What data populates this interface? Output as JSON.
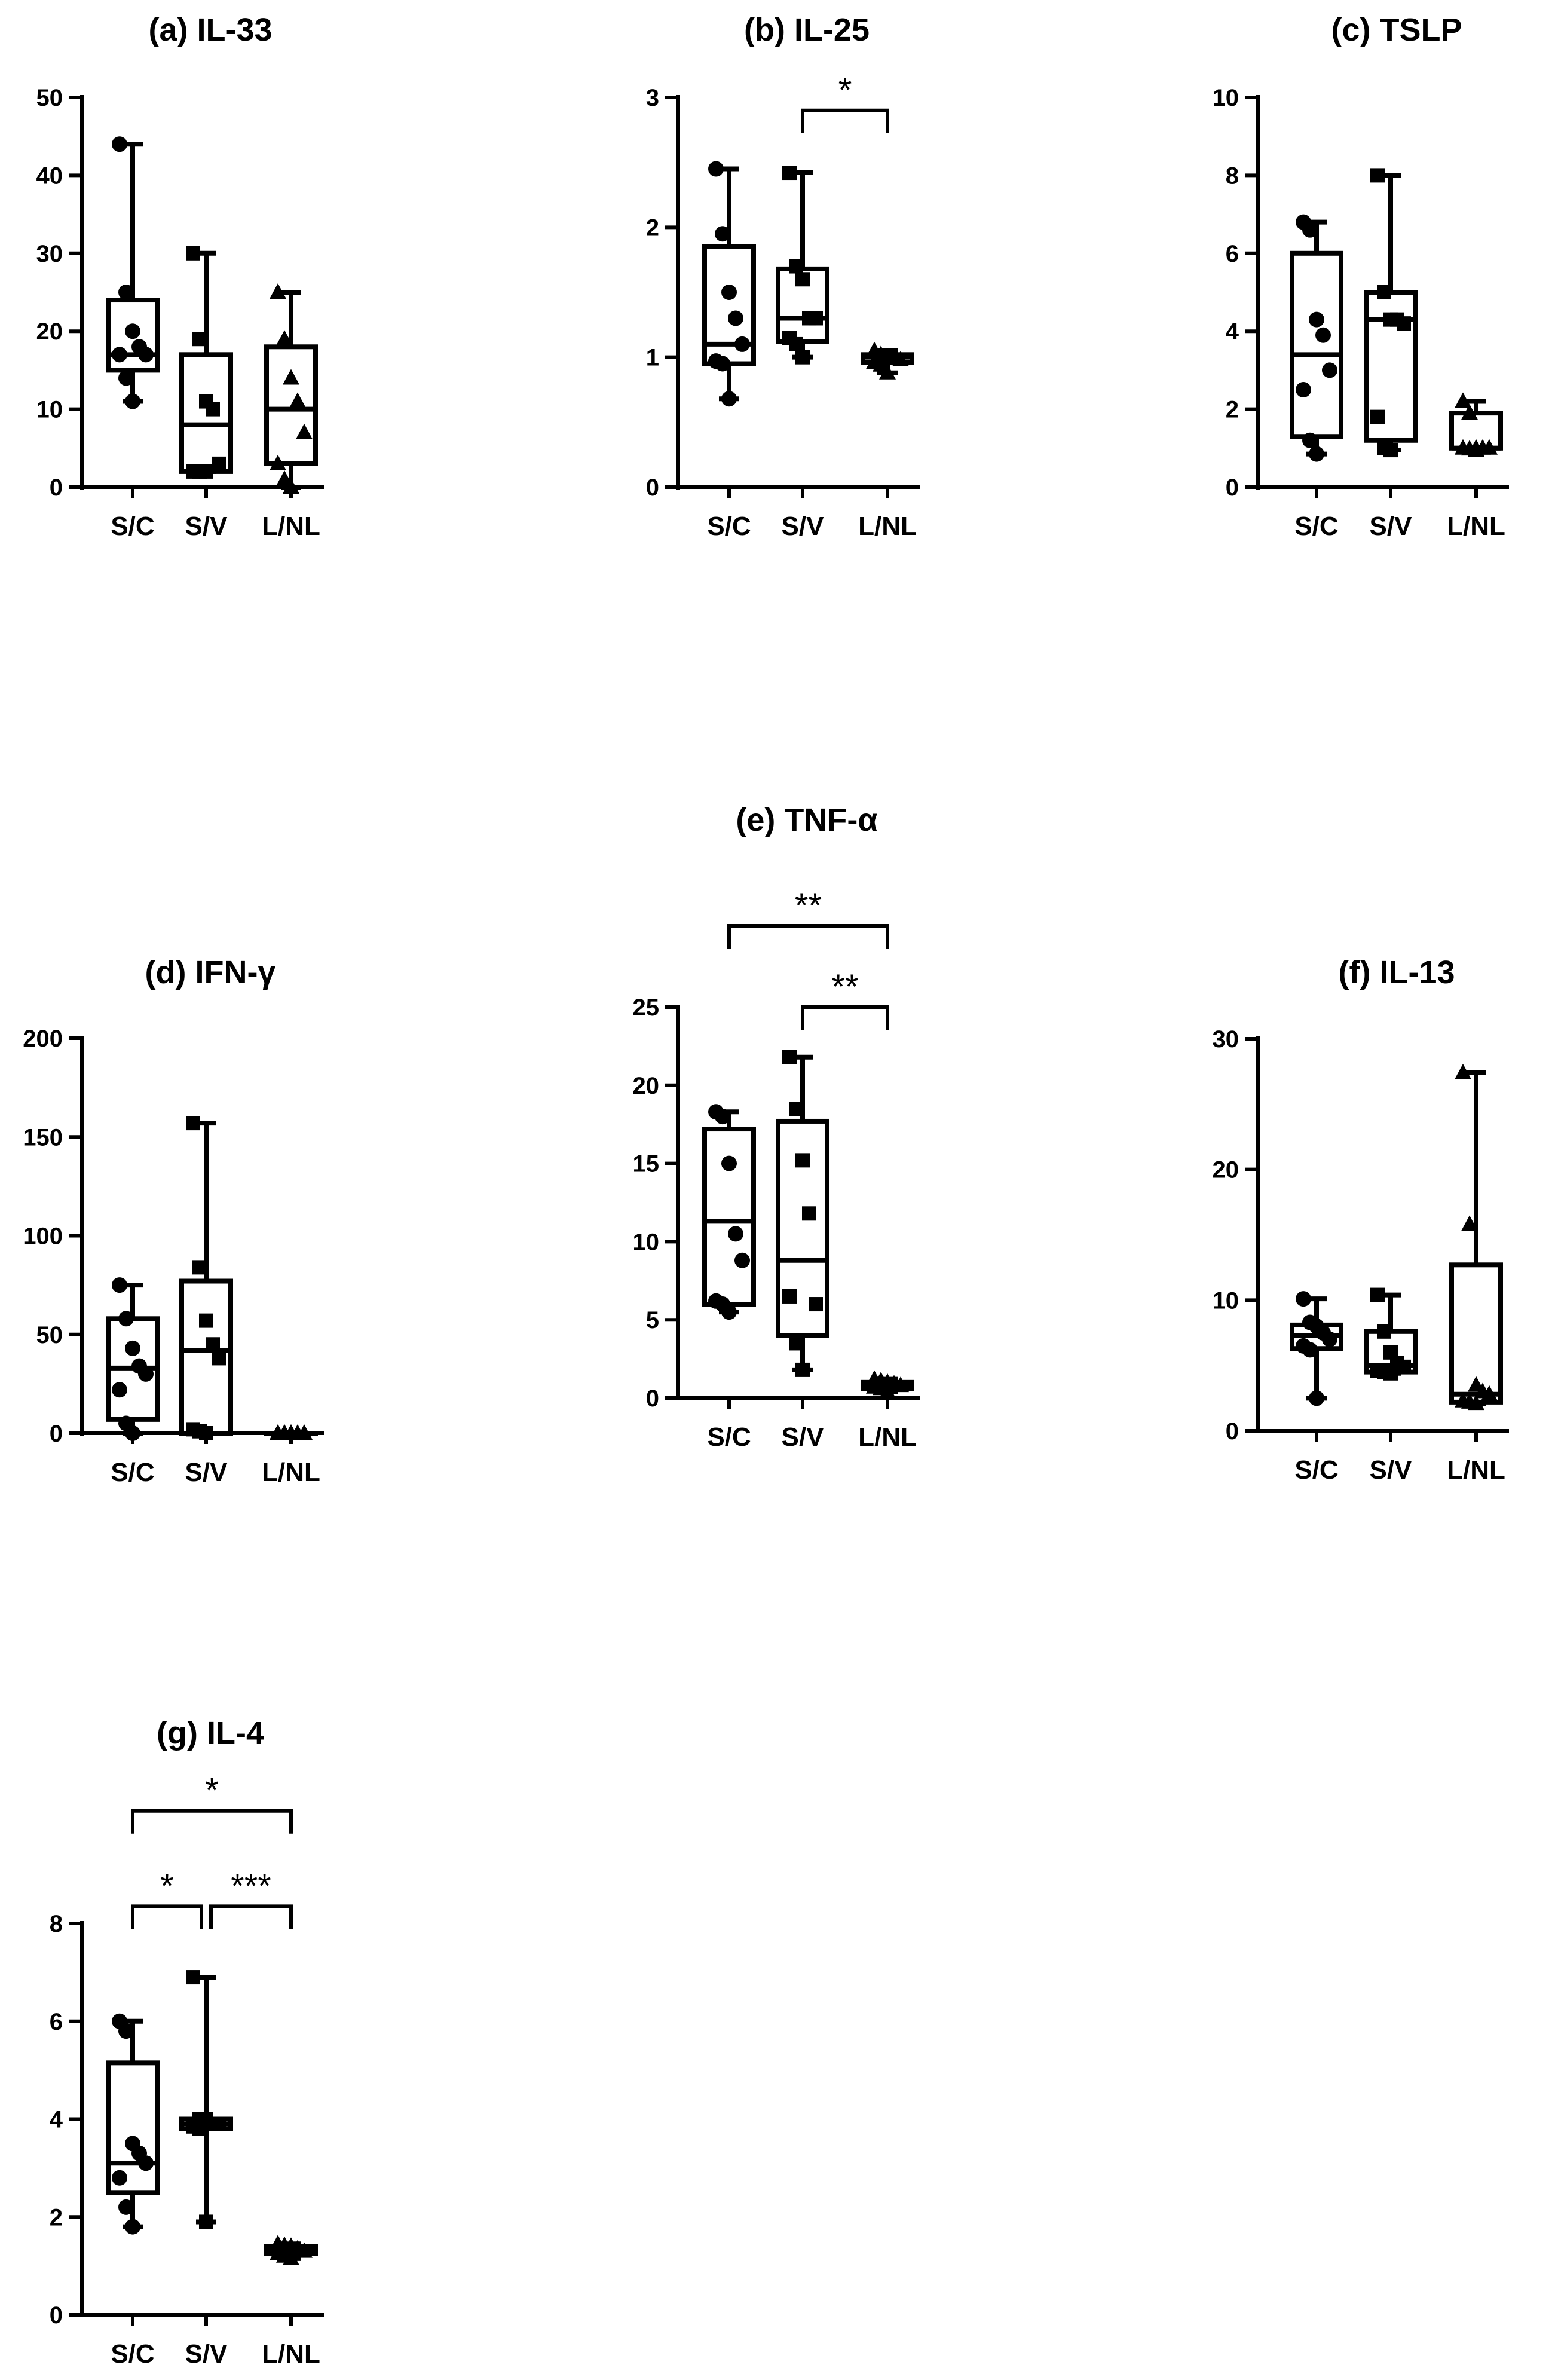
{
  "chart_data": [
    {
      "id": "a",
      "type": "box",
      "title": "(a)   IL-33",
      "categories": [
        "S/C",
        "S/V",
        "L/NL"
      ],
      "ylim": [
        0,
        50
      ],
      "yticks": [
        0,
        10,
        20,
        30,
        40,
        50
      ],
      "grid": false,
      "series": [
        {
          "marker": "circle",
          "box": {
            "min": 11,
            "q1": 15,
            "median": 17,
            "q3": 24,
            "max": 44
          },
          "points": [
            44,
            25,
            20,
            18,
            17,
            17,
            14,
            11
          ]
        },
        {
          "marker": "square",
          "box": {
            "min": 2,
            "q1": 2,
            "median": 8,
            "q3": 17,
            "max": 30
          },
          "points": [
            30,
            19,
            11,
            10,
            3,
            2,
            2,
            2
          ]
        },
        {
          "marker": "triangle",
          "box": {
            "min": 0,
            "q1": 3,
            "median": 10,
            "q3": 18,
            "max": 25
          },
          "points": [
            25,
            19,
            14,
            11,
            7,
            3,
            1,
            0
          ]
        }
      ],
      "significance": []
    },
    {
      "id": "b",
      "type": "box",
      "title": "(b)   IL-25",
      "categories": [
        "S/C",
        "S/V",
        "L/NL"
      ],
      "ylim": [
        0,
        3
      ],
      "yticks": [
        0,
        1,
        2,
        3
      ],
      "grid": false,
      "series": [
        {
          "marker": "circle",
          "box": {
            "min": 0.68,
            "q1": 0.95,
            "median": 1.1,
            "q3": 1.85,
            "max": 2.45
          },
          "points": [
            2.45,
            1.95,
            1.5,
            1.3,
            1.1,
            0.97,
            0.95,
            0.68
          ]
        },
        {
          "marker": "square",
          "box": {
            "min": 1.0,
            "q1": 1.12,
            "median": 1.3,
            "q3": 1.68,
            "max": 2.42
          },
          "points": [
            2.42,
            1.7,
            1.6,
            1.3,
            1.3,
            1.15,
            1.1,
            1.0
          ]
        },
        {
          "marker": "triangle",
          "box": {
            "min": 0.88,
            "q1": 0.96,
            "median": 1.0,
            "q3": 1.02,
            "max": 1.05
          },
          "points": [
            1.05,
            1.02,
            1.0,
            1.0,
            0.98,
            0.96,
            0.94,
            0.88
          ]
        }
      ],
      "significance": [
        {
          "from": 1,
          "to": 2,
          "label": "*",
          "y": 2.9
        }
      ]
    },
    {
      "id": "c",
      "type": "box",
      "title": "(c)   TSLP",
      "categories": [
        "S/C",
        "S/V",
        "L/NL"
      ],
      "ylim": [
        0,
        10
      ],
      "yticks": [
        0,
        2,
        4,
        6,
        8,
        10
      ],
      "grid": false,
      "series": [
        {
          "marker": "circle",
          "box": {
            "min": 0.85,
            "q1": 1.3,
            "median": 3.4,
            "q3": 6.0,
            "max": 6.8
          },
          "points": [
            6.8,
            6.6,
            4.3,
            3.9,
            3.0,
            2.5,
            1.2,
            0.85
          ]
        },
        {
          "marker": "square",
          "box": {
            "min": 0.95,
            "q1": 1.2,
            "median": 4.3,
            "q3": 5.0,
            "max": 8.0
          },
          "points": [
            8.0,
            5.0,
            4.3,
            4.3,
            4.2,
            1.8,
            1.0,
            0.95
          ]
        },
        {
          "marker": "triangle",
          "box": {
            "min": 0.95,
            "q1": 1.0,
            "median": 1.0,
            "q3": 1.9,
            "max": 2.2
          },
          "points": [
            2.2,
            1.9,
            1.0,
            1.0,
            1.0,
            1.0,
            0.98,
            0.95
          ]
        }
      ],
      "significance": []
    },
    {
      "id": "d",
      "type": "box",
      "title": "(d)   IFN-γ",
      "categories": [
        "S/C",
        "S/V",
        "L/NL"
      ],
      "ylim": [
        0,
        200
      ],
      "yticks": [
        0,
        50,
        100,
        150,
        200
      ],
      "grid": false,
      "series": [
        {
          "marker": "circle",
          "box": {
            "min": 0,
            "q1": 7,
            "median": 33,
            "q3": 58,
            "max": 75
          },
          "points": [
            75,
            58,
            43,
            34,
            30,
            22,
            5,
            0
          ]
        },
        {
          "marker": "square",
          "box": {
            "min": 0,
            "q1": 0,
            "median": 42,
            "q3": 77,
            "max": 157
          },
          "points": [
            157,
            84,
            57,
            45,
            38,
            2,
            1,
            0
          ]
        },
        {
          "marker": "triangle",
          "box": {
            "min": 0,
            "q1": 0,
            "median": 0,
            "q3": 0,
            "max": 0
          },
          "points": [
            0,
            0,
            0,
            0,
            0,
            0,
            0,
            0
          ]
        }
      ],
      "significance": []
    },
    {
      "id": "e",
      "type": "box",
      "title": "(e)   TNF-α",
      "categories": [
        "S/C",
        "S/V",
        "L/NL"
      ],
      "ylim": [
        0,
        25
      ],
      "yticks": [
        0,
        5,
        10,
        15,
        20,
        25
      ],
      "grid": false,
      "series": [
        {
          "marker": "circle",
          "box": {
            "min": 5.5,
            "q1": 6.0,
            "median": 11.3,
            "q3": 17.2,
            "max": 18.3
          },
          "points": [
            18.3,
            18.0,
            15.0,
            10.5,
            8.8,
            6.2,
            6.0,
            5.5
          ]
        },
        {
          "marker": "square",
          "box": {
            "min": 1.8,
            "q1": 4.0,
            "median": 8.8,
            "q3": 17.7,
            "max": 21.8
          },
          "points": [
            21.8,
            18.5,
            15.2,
            11.8,
            6.0,
            6.5,
            3.5,
            1.8
          ]
        },
        {
          "marker": "triangle",
          "box": {
            "min": 0.4,
            "q1": 0.6,
            "median": 0.8,
            "q3": 1.0,
            "max": 1.2
          },
          "points": [
            1.2,
            1.1,
            1.0,
            0.9,
            0.8,
            0.7,
            0.6,
            0.4
          ]
        }
      ],
      "significance": [
        {
          "from": 0,
          "to": 2,
          "label": "**",
          "y": 30.2
        },
        {
          "from": 1,
          "to": 2,
          "label": "**",
          "y": 25.0
        }
      ]
    },
    {
      "id": "f",
      "type": "box",
      "title": "(f)   IL-13",
      "categories": [
        "S/C",
        "S/V",
        "L/NL"
      ],
      "ylim": [
        0,
        30
      ],
      "yticks": [
        0,
        10,
        20,
        30
      ],
      "grid": false,
      "series": [
        {
          "marker": "circle",
          "box": {
            "min": 2.5,
            "q1": 6.3,
            "median": 7.3,
            "q3": 8.1,
            "max": 10.1
          },
          "points": [
            10.1,
            8.3,
            8.0,
            7.5,
            7.0,
            6.5,
            6.2,
            2.5
          ]
        },
        {
          "marker": "square",
          "box": {
            "min": 4.4,
            "q1": 4.5,
            "median": 5.0,
            "q3": 7.6,
            "max": 10.4
          },
          "points": [
            10.4,
            7.6,
            6.0,
            5.2,
            4.9,
            4.6,
            4.5,
            4.4
          ]
        },
        {
          "marker": "triangle",
          "box": {
            "min": 2.1,
            "q1": 2.2,
            "median": 2.8,
            "q3": 12.7,
            "max": 27.4
          },
          "points": [
            27.4,
            15.8,
            3.5,
            3.0,
            2.8,
            2.3,
            2.2,
            2.1
          ]
        }
      ],
      "significance": []
    },
    {
      "id": "g",
      "type": "box",
      "title": "(g)   IL-4",
      "categories": [
        "S/C",
        "S/V",
        "L/NL"
      ],
      "ylim": [
        0,
        8
      ],
      "yticks": [
        0,
        2,
        4,
        6,
        8
      ],
      "grid": false,
      "series": [
        {
          "marker": "circle",
          "box": {
            "min": 1.8,
            "q1": 2.5,
            "median": 3.1,
            "q3": 5.15,
            "max": 6.0
          },
          "points": [
            6.0,
            5.8,
            3.5,
            3.3,
            3.1,
            2.8,
            2.2,
            1.8
          ]
        },
        {
          "marker": "square",
          "box": {
            "min": 1.9,
            "q1": 3.8,
            "median": 3.9,
            "q3": 4.0,
            "max": 6.9
          },
          "points": [
            6.9,
            4.0,
            4.0,
            3.9,
            3.9,
            3.85,
            3.8,
            1.9
          ]
        },
        {
          "marker": "triangle",
          "box": {
            "min": 1.15,
            "q1": 1.25,
            "median": 1.3,
            "q3": 1.4,
            "max": 1.45
          },
          "points": [
            1.45,
            1.42,
            1.4,
            1.35,
            1.3,
            1.25,
            1.2,
            1.15
          ]
        }
      ],
      "significance": [
        {
          "from": 0,
          "to": 2,
          "label": "*",
          "y": 10.3
        },
        {
          "from": 0,
          "to": 1,
          "label": "*",
          "y": 8.35
        },
        {
          "from": 1,
          "to": 2,
          "label": "***",
          "y": 8.35
        }
      ]
    }
  ]
}
